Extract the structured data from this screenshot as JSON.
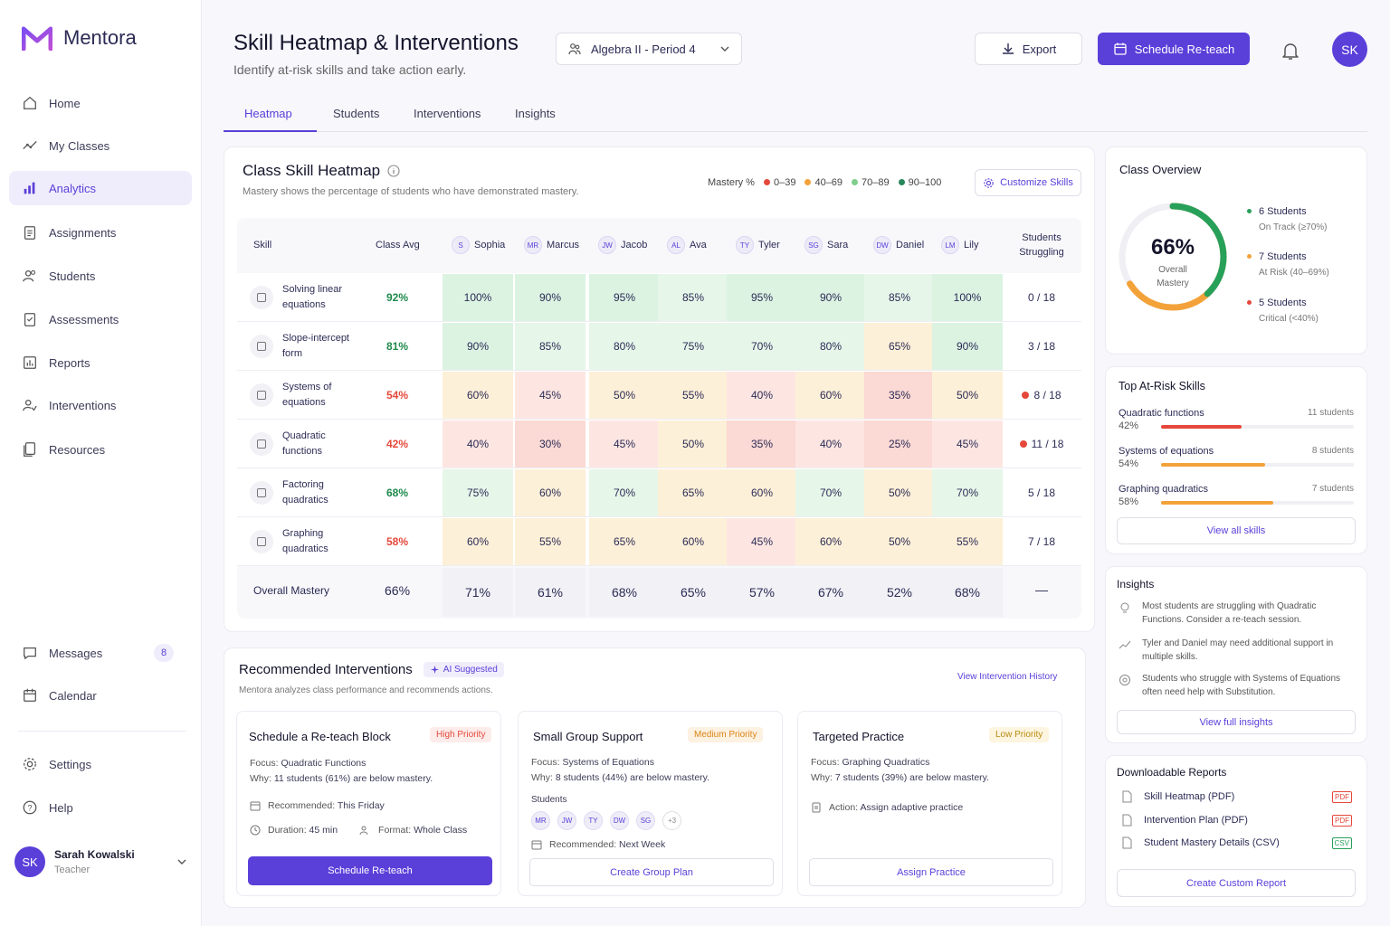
{
  "app": {
    "name": "Mentora"
  },
  "sidebar": {
    "items": [
      {
        "label": "Home"
      },
      {
        "label": "My Classes"
      },
      {
        "label": "Analytics"
      },
      {
        "label": "Assignments"
      },
      {
        "label": "Students"
      },
      {
        "label": "Assessments"
      },
      {
        "label": "Reports"
      },
      {
        "label": "Interventions"
      },
      {
        "label": "Resources"
      }
    ],
    "bottom": [
      {
        "label": "Messages",
        "badge": "8"
      },
      {
        "label": "Calendar"
      },
      {
        "label": "Settings"
      },
      {
        "label": "Help"
      }
    ],
    "user": {
      "initials": "SK",
      "name": "Sarah Kowalski",
      "role": "Teacher"
    }
  },
  "header": {
    "title": "Skill Heatmap & Interventions",
    "subtitle": "Identify at-risk skills and take action early.",
    "class_select": "Algebra II - Period 4",
    "export_label": "Export",
    "schedule_label": "Schedule Re-teach",
    "avatar": "SK"
  },
  "tabs": [
    "Heatmap",
    "Students",
    "Interventions",
    "Insights"
  ],
  "heatmap": {
    "title": "Class Skill Heatmap",
    "subtitle": "Mastery shows the percentage of students who have demonstrated mastery.",
    "legend_label": "Mastery %",
    "legend": [
      {
        "label": "0–39",
        "color": "#e5483b"
      },
      {
        "label": "40–69",
        "color": "#f3a23a"
      },
      {
        "label": "70–89",
        "color": "#7fce8c"
      },
      {
        "label": "90–100",
        "color": "#27865a"
      }
    ],
    "customize_label": "Customize Skills",
    "col_skill": "Skill",
    "col_avg": "Class Avg",
    "col_struggling": "Students Struggling",
    "students": [
      {
        "initials": "S",
        "name": "Sophia"
      },
      {
        "initials": "MR",
        "name": "Marcus"
      },
      {
        "initials": "JW",
        "name": "Jacob"
      },
      {
        "initials": "AL",
        "name": "Ava"
      },
      {
        "initials": "TY",
        "name": "Tyler"
      },
      {
        "initials": "SG",
        "name": "Sara"
      },
      {
        "initials": "DW",
        "name": "Daniel"
      },
      {
        "initials": "LM",
        "name": "Lily"
      }
    ],
    "rows": [
      {
        "skill": "Solving linear equations",
        "line1": "Solving linear",
        "line2": "equations",
        "avg": "92%",
        "avg_color": "#1f8a4c",
        "values": [
          100,
          90,
          95,
          85,
          95,
          90,
          85,
          100
        ],
        "struggling": "0 / 18",
        "alert": false
      },
      {
        "skill": "Slope-intercept form",
        "line1": "Slope-intercept",
        "line2": "form",
        "avg": "81%",
        "avg_color": "#1f8a4c",
        "values": [
          90,
          85,
          80,
          75,
          70,
          80,
          65,
          90
        ],
        "struggling": "3 / 18",
        "alert": false
      },
      {
        "skill": "Systems of equations",
        "line1": "Systems of",
        "line2": "equations",
        "avg": "54%",
        "avg_color": "#e5483b",
        "values": [
          60,
          45,
          50,
          55,
          40,
          60,
          35,
          50
        ],
        "struggling": "8 / 18",
        "alert": true
      },
      {
        "skill": "Quadratic functions",
        "line1": "Quadratic",
        "line2": "functions",
        "avg": "42%",
        "avg_color": "#e5483b",
        "values": [
          40,
          30,
          45,
          50,
          35,
          40,
          25,
          45
        ],
        "struggling": "11 / 18",
        "alert": true
      },
      {
        "skill": "Factoring quadratics",
        "line1": "Factoring",
        "line2": "quadratics",
        "avg": "68%",
        "avg_color": "#1f8a4c",
        "values": [
          75,
          60,
          70,
          65,
          60,
          70,
          50,
          70
        ],
        "struggling": "5 / 18",
        "alert": false
      },
      {
        "skill": "Graphing quadratics",
        "line1": "Graphing",
        "line2": "quadratics",
        "avg": "58%",
        "avg_color": "#e5483b",
        "values": [
          60,
          55,
          65,
          60,
          45,
          60,
          50,
          55
        ],
        "struggling": "7 / 18",
        "alert": false
      }
    ],
    "overall": {
      "label": "Overall Mastery",
      "avg": "66%",
      "values": [
        "71%",
        "61%",
        "68%",
        "65%",
        "57%",
        "67%",
        "52%",
        "68%"
      ],
      "struggling": "—"
    }
  },
  "interventions": {
    "title": "Recommended Interventions",
    "ai_badge": "AI Suggested",
    "subtitle": "Mentora analyzes class performance and recommends actions.",
    "history_link": "View Intervention History",
    "cards": [
      {
        "title": "Schedule a Re-teach Block",
        "priority": "High Priority",
        "focus_k": "Focus:",
        "focus": "Quadratic Functions",
        "why_k": "Why:",
        "why": "11 students (61%) are below mastery.",
        "rec_k": "Recommended:",
        "rec": "This Friday",
        "dur_k": "Duration:",
        "dur": "45 min",
        "fmt_k": "Format:",
        "fmt": "Whole Class",
        "button": "Schedule Re-teach"
      },
      {
        "title": "Small Group Support",
        "priority": "Medium Priority",
        "focus_k": "Focus:",
        "focus": "Systems of Equations",
        "why_k": "Why:",
        "why": "8 students (44%) are below mastery.",
        "students_label": "Students",
        "students": [
          "MR",
          "JW",
          "TY",
          "DW",
          "SG"
        ],
        "more": "+3",
        "rec_k": "Recommended:",
        "rec": "Next Week",
        "button": "Create Group Plan"
      },
      {
        "title": "Targeted Practice",
        "priority": "Low Priority",
        "focus_k": "Focus:",
        "focus": "Graphing Quadratics",
        "why_k": "Why:",
        "why": "7 students (39%) are below mastery.",
        "action_k": "Action:",
        "action": "Assign adaptive practice",
        "button": "Assign Practice"
      }
    ]
  },
  "overview": {
    "title": "Class Overview",
    "percent": "66%",
    "ring_value": 66,
    "label1": "Overall",
    "label2": "Mastery",
    "items": [
      {
        "count": "6 Students",
        "desc": "On Track (≥70%)",
        "color": "#27a05a"
      },
      {
        "count": "7 Students",
        "desc": "At Risk (40–69%)",
        "color": "#f3a23a"
      },
      {
        "count": "5 Students",
        "desc": "Critical (<40%)",
        "color": "#e5483b"
      }
    ]
  },
  "at_risk": {
    "title": "Top At-Risk Skills",
    "items": [
      {
        "name": "Quadratic functions",
        "pct": "42%",
        "value": 42,
        "count": "11 students",
        "color": "#e5483b"
      },
      {
        "name": "Systems of equations",
        "pct": "54%",
        "value": 54,
        "count": "8 students",
        "color": "#f3a23a"
      },
      {
        "name": "Graphing quadratics",
        "pct": "58%",
        "value": 58,
        "count": "7 students",
        "color": "#f3a23a"
      }
    ],
    "view_all": "View all skills"
  },
  "insights": {
    "title": "Insights",
    "items": [
      "Most students are struggling with Quadratic Functions. Consider a re-teach session.",
      "Tyler and Daniel may need additional support in multiple skills.",
      "Students who struggle with Systems of Equations often need help with Substitution."
    ],
    "view_full": "View full insights"
  },
  "reports": {
    "title": "Downloadable Reports",
    "items": [
      {
        "name": "Skill Heatmap (PDF)",
        "tag": "PDF",
        "color": "#e5483b"
      },
      {
        "name": "Intervention Plan (PDF)",
        "tag": "PDF",
        "color": "#e5483b"
      },
      {
        "name": "Student Mastery Details (CSV)",
        "tag": "CSV",
        "color": "#27a05a"
      }
    ],
    "create": "Create Custom Report"
  }
}
